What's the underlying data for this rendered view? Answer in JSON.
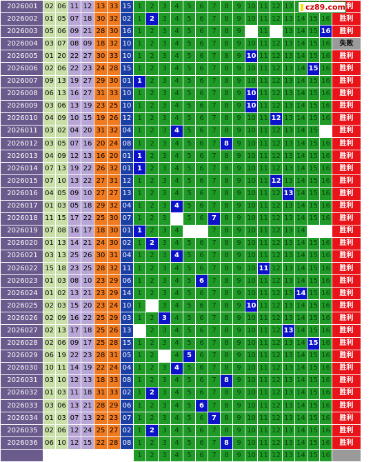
{
  "site_logo": "cz89.com",
  "rows": [
    {
      "issue": "2026001",
      "nums": [
        "02",
        "06",
        "11",
        "12",
        "13",
        "33"
      ],
      "last": "15",
      "hit": null,
      "blanks": [],
      "result": "胜利"
    },
    {
      "issue": "2026002",
      "nums": [
        "01",
        "05",
        "07",
        "18",
        "30",
        "32"
      ],
      "last": "02",
      "hit": 2,
      "blanks": [],
      "result": "胜利"
    },
    {
      "issue": "2026003",
      "nums": [
        "05",
        "06",
        "09",
        "21",
        "28",
        "30"
      ],
      "last": "16",
      "hit": 16,
      "blanks": [
        10,
        12
      ],
      "result": "胜利"
    },
    {
      "issue": "2026004",
      "nums": [
        "03",
        "07",
        "08",
        "09",
        "18",
        "32"
      ],
      "last": "10",
      "hit": null,
      "blanks": [],
      "result": "失败"
    },
    {
      "issue": "2026005",
      "nums": [
        "01",
        "20",
        "22",
        "27",
        "30",
        "33"
      ],
      "last": "10",
      "hit": 10,
      "blanks": [],
      "result": "胜利"
    },
    {
      "issue": "2026006",
      "nums": [
        "02",
        "06",
        "22",
        "23",
        "24",
        "28"
      ],
      "last": "15",
      "hit": 15,
      "blanks": [],
      "result": "胜利"
    },
    {
      "issue": "2026007",
      "nums": [
        "09",
        "13",
        "19",
        "27",
        "29",
        "30"
      ],
      "last": "01",
      "hit": 1,
      "blanks": [],
      "result": "胜利"
    },
    {
      "issue": "2026008",
      "nums": [
        "06",
        "13",
        "16",
        "27",
        "31",
        "33"
      ],
      "last": "10",
      "hit": 10,
      "blanks": [],
      "result": "胜利"
    },
    {
      "issue": "2026009",
      "nums": [
        "03",
        "06",
        "13",
        "19",
        "23",
        "25"
      ],
      "last": "10",
      "hit": 10,
      "blanks": [],
      "result": "胜利"
    },
    {
      "issue": "2026010",
      "nums": [
        "04",
        "09",
        "10",
        "15",
        "19",
        "26"
      ],
      "last": "12",
      "hit": 12,
      "blanks": [],
      "result": "胜利"
    },
    {
      "issue": "2026011",
      "nums": [
        "03",
        "02",
        "04",
        "20",
        "31",
        "32"
      ],
      "last": "04",
      "hit": 4,
      "blanks": [
        16
      ],
      "result": "胜利"
    },
    {
      "issue": "2026012",
      "nums": [
        "03",
        "05",
        "07",
        "16",
        "20",
        "24"
      ],
      "last": "08",
      "hit": 8,
      "blanks": [],
      "result": "胜利"
    },
    {
      "issue": "2026013",
      "nums": [
        "04",
        "09",
        "12",
        "13",
        "16",
        "20"
      ],
      "last": "01",
      "hit": 1,
      "blanks": [],
      "result": "胜利"
    },
    {
      "issue": "2026014",
      "nums": [
        "07",
        "13",
        "19",
        "22",
        "26",
        "32"
      ],
      "last": "01",
      "hit": 1,
      "blanks": [],
      "result": "胜利"
    },
    {
      "issue": "2026015",
      "nums": [
        "07",
        "10",
        "13",
        "22",
        "27",
        "31"
      ],
      "last": "12",
      "hit": 12,
      "blanks": [],
      "result": "胜利"
    },
    {
      "issue": "2026016",
      "nums": [
        "04",
        "05",
        "09",
        "10",
        "27",
        "27"
      ],
      "last": "13",
      "hit": 13,
      "blanks": [],
      "result": "胜利"
    },
    {
      "issue": "2026017",
      "nums": [
        "01",
        "03",
        "05",
        "18",
        "29",
        "32"
      ],
      "last": "04",
      "hit": 4,
      "blanks": [],
      "result": "胜利"
    },
    {
      "issue": "2026018",
      "nums": [
        "11",
        "15",
        "17",
        "22",
        "25",
        "30"
      ],
      "last": "07",
      "hit": 7,
      "blanks": [
        4
      ],
      "result": "胜利"
    },
    {
      "issue": "2026019",
      "nums": [
        "07",
        "08",
        "16",
        "17",
        "18",
        "30"
      ],
      "last": "01",
      "hit": 1,
      "blanks": [
        5,
        6,
        15,
        16
      ],
      "result": "胜利"
    },
    {
      "issue": "2026020",
      "nums": [
        "01",
        "13",
        "14",
        "21",
        "24",
        "30"
      ],
      "last": "02",
      "hit": 2,
      "blanks": [],
      "result": "胜利"
    },
    {
      "issue": "2026021",
      "nums": [
        "03",
        "13",
        "25",
        "26",
        "30",
        "31"
      ],
      "last": "04",
      "hit": 4,
      "blanks": [],
      "result": "胜利"
    },
    {
      "issue": "2026022",
      "nums": [
        "15",
        "18",
        "23",
        "25",
        "28",
        "32"
      ],
      "last": "11",
      "hit": 11,
      "blanks": [],
      "result": "胜利"
    },
    {
      "issue": "2026023",
      "nums": [
        "01",
        "03",
        "08",
        "10",
        "23",
        "29"
      ],
      "last": "06",
      "hit": 6,
      "blanks": [],
      "result": "胜利"
    },
    {
      "issue": "2026024",
      "nums": [
        "01",
        "02",
        "13",
        "21",
        "23",
        "29"
      ],
      "last": "14",
      "hit": 14,
      "blanks": [],
      "result": "胜利"
    },
    {
      "issue": "2026025",
      "nums": [
        "02",
        "03",
        "15",
        "20",
        "23",
        "24"
      ],
      "last": "10",
      "hit": 10,
      "blanks": [
        2
      ],
      "result": "胜利"
    },
    {
      "issue": "2026026",
      "nums": [
        "02",
        "09",
        "16",
        "22",
        "25",
        "29"
      ],
      "last": "03",
      "hit": 3,
      "blanks": [],
      "result": "胜利"
    },
    {
      "issue": "2026027",
      "nums": [
        "02",
        "13",
        "17",
        "18",
        "25",
        "26"
      ],
      "last": "13",
      "hit": 13,
      "blanks": [
        1
      ],
      "result": "胜利"
    },
    {
      "issue": "2026028",
      "nums": [
        "02",
        "06",
        "09",
        "17",
        "25",
        "28"
      ],
      "last": "15",
      "hit": 15,
      "blanks": [],
      "result": "胜利"
    },
    {
      "issue": "2026029",
      "nums": [
        "06",
        "19",
        "22",
        "23",
        "28",
        "31"
      ],
      "last": "05",
      "hit": 5,
      "blanks": [
        3
      ],
      "result": "胜利"
    },
    {
      "issue": "2026030",
      "nums": [
        "10",
        "11",
        "14",
        "19",
        "22",
        "24"
      ],
      "last": "04",
      "hit": 4,
      "blanks": [],
      "result": "胜利"
    },
    {
      "issue": "2026031",
      "nums": [
        "03",
        "10",
        "12",
        "13",
        "18",
        "33"
      ],
      "last": "08",
      "hit": 8,
      "blanks": [],
      "result": "胜利"
    },
    {
      "issue": "2026032",
      "nums": [
        "01",
        "03",
        "11",
        "18",
        "31",
        "33"
      ],
      "last": "02",
      "hit": 2,
      "blanks": [],
      "result": "胜利"
    },
    {
      "issue": "2026033",
      "nums": [
        "03",
        "06",
        "13",
        "21",
        "28",
        "29"
      ],
      "last": "06",
      "hit": 6,
      "blanks": [],
      "result": "胜利"
    },
    {
      "issue": "2026034",
      "nums": [
        "01",
        "03",
        "07",
        "13",
        "22",
        "23"
      ],
      "last": "07",
      "hit": 7,
      "blanks": [],
      "result": "胜利"
    },
    {
      "issue": "2026035",
      "nums": [
        "02",
        "06",
        "12",
        "24",
        "25",
        "27"
      ],
      "last": "02",
      "hit": 2,
      "blanks": [],
      "result": "胜利"
    },
    {
      "issue": "2026036",
      "nums": [
        "06",
        "10",
        "12",
        "15",
        "22",
        "28"
      ],
      "last": "08",
      "hit": 8,
      "blanks": [],
      "result": "胜利"
    }
  ],
  "footer_grid": [
    "1",
    "2",
    "3",
    "4",
    "5",
    "6",
    "7",
    "8",
    "9",
    "10",
    "11",
    "12",
    "13",
    "14",
    "15",
    "16"
  ],
  "colors": {
    "issue_bg": "#6b5a8c",
    "red_nums_light": "#c8e0a8",
    "red_nums_mid": "#b7a6d6",
    "red_nums_high": "#ef7a1f",
    "last_bg": "#1c3fa6",
    "grid_green": "#1f9a27",
    "hit_blue": "#0c12c8",
    "win_red": "#e8141a",
    "lose_gray": "#9a9a9a"
  }
}
